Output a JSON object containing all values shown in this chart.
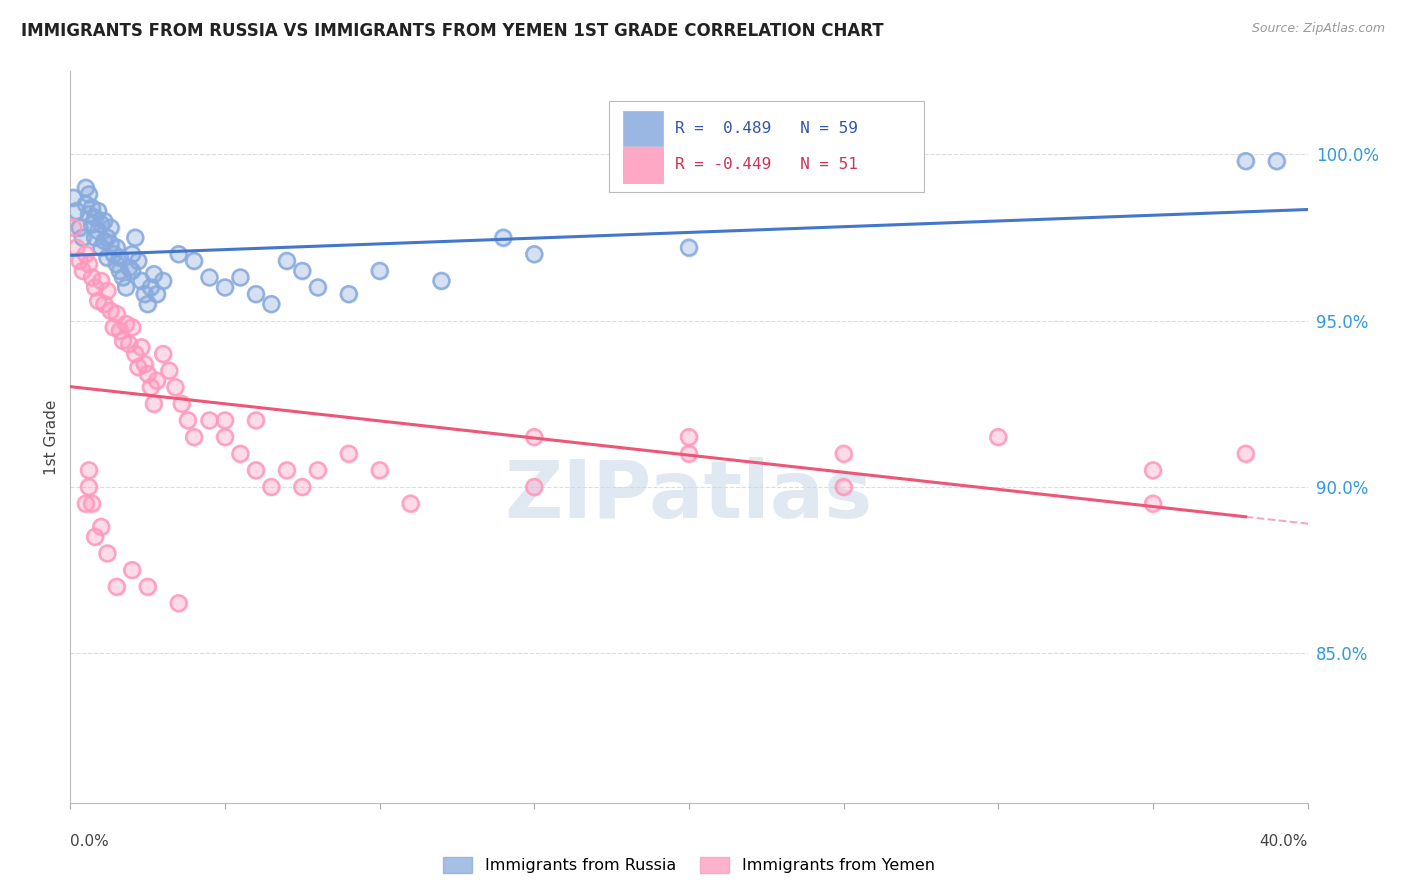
{
  "title": "IMMIGRANTS FROM RUSSIA VS IMMIGRANTS FROM YEMEN 1ST GRADE CORRELATION CHART",
  "source": "Source: ZipAtlas.com",
  "ylabel": "1st Grade",
  "ytick_labels": [
    "100.0%",
    "95.0%",
    "90.0%",
    "85.0%"
  ],
  "ytick_values": [
    1.0,
    0.95,
    0.9,
    0.85
  ],
  "xlim": [
    0.0,
    0.4
  ],
  "ylim": [
    0.805,
    1.025
  ],
  "russia_color": "#88AADD",
  "yemen_color": "#FF99BB",
  "russia_R": 0.489,
  "russia_N": 59,
  "yemen_R": -0.449,
  "yemen_N": 51,
  "russia_trend_color": "#4477CC",
  "yemen_trend_color": "#EE5577",
  "russia_scatter_x": [
    0.001,
    0.002,
    0.003,
    0.004,
    0.005,
    0.005,
    0.006,
    0.006,
    0.007,
    0.007,
    0.008,
    0.008,
    0.009,
    0.009,
    0.01,
    0.01,
    0.011,
    0.011,
    0.012,
    0.012,
    0.013,
    0.013,
    0.014,
    0.015,
    0.015,
    0.016,
    0.016,
    0.017,
    0.018,
    0.019,
    0.02,
    0.02,
    0.021,
    0.022,
    0.023,
    0.024,
    0.025,
    0.026,
    0.027,
    0.028,
    0.03,
    0.035,
    0.04,
    0.045,
    0.05,
    0.055,
    0.06,
    0.065,
    0.07,
    0.075,
    0.08,
    0.09,
    0.1,
    0.12,
    0.14,
    0.15,
    0.2,
    0.38,
    0.39
  ],
  "russia_scatter_y": [
    0.987,
    0.983,
    0.978,
    0.975,
    0.99,
    0.985,
    0.988,
    0.982,
    0.979,
    0.984,
    0.975,
    0.981,
    0.977,
    0.983,
    0.972,
    0.979,
    0.974,
    0.98,
    0.975,
    0.969,
    0.978,
    0.973,
    0.97,
    0.967,
    0.972,
    0.965,
    0.969,
    0.963,
    0.96,
    0.966,
    0.97,
    0.965,
    0.975,
    0.968,
    0.962,
    0.958,
    0.955,
    0.96,
    0.964,
    0.958,
    0.962,
    0.97,
    0.968,
    0.963,
    0.96,
    0.963,
    0.958,
    0.955,
    0.968,
    0.965,
    0.96,
    0.958,
    0.965,
    0.962,
    0.975,
    0.97,
    0.972,
    0.998,
    0.998
  ],
  "yemen_scatter_x": [
    0.001,
    0.002,
    0.003,
    0.004,
    0.005,
    0.006,
    0.007,
    0.008,
    0.009,
    0.01,
    0.011,
    0.012,
    0.013,
    0.014,
    0.015,
    0.016,
    0.017,
    0.018,
    0.019,
    0.02,
    0.021,
    0.022,
    0.023,
    0.024,
    0.025,
    0.026,
    0.027,
    0.028,
    0.03,
    0.032,
    0.034,
    0.036,
    0.038,
    0.04,
    0.045,
    0.05,
    0.055,
    0.06,
    0.065,
    0.07,
    0.075,
    0.08,
    0.09,
    0.1,
    0.11,
    0.15,
    0.2,
    0.25,
    0.3,
    0.35,
    0.38
  ],
  "yemen_scatter_y": [
    0.978,
    0.972,
    0.968,
    0.965,
    0.97,
    0.967,
    0.963,
    0.96,
    0.956,
    0.962,
    0.955,
    0.959,
    0.953,
    0.948,
    0.952,
    0.947,
    0.944,
    0.949,
    0.943,
    0.948,
    0.94,
    0.936,
    0.942,
    0.937,
    0.934,
    0.93,
    0.925,
    0.932,
    0.94,
    0.935,
    0.93,
    0.925,
    0.92,
    0.915,
    0.92,
    0.915,
    0.91,
    0.905,
    0.9,
    0.905,
    0.9,
    0.905,
    0.91,
    0.905,
    0.895,
    0.915,
    0.915,
    0.9,
    0.915,
    0.905,
    0.91
  ],
  "yemen_scatter_low_x": [
    0.005,
    0.006,
    0.006,
    0.007,
    0.008,
    0.01,
    0.012,
    0.015,
    0.02,
    0.025,
    0.035,
    0.05,
    0.06,
    0.15,
    0.2,
    0.25,
    0.35
  ],
  "yemen_scatter_low_y": [
    0.895,
    0.9,
    0.905,
    0.895,
    0.885,
    0.888,
    0.88,
    0.87,
    0.875,
    0.87,
    0.865,
    0.92,
    0.92,
    0.9,
    0.91,
    0.91,
    0.895
  ],
  "watermark_text": "ZIPatlas",
  "grid_color": "#DDDDDD",
  "background_color": "#FFFFFF",
  "legend_russia_text": "R =  0.489   N = 59",
  "legend_yemen_text": "R = -0.449   N = 51",
  "bottom_legend_russia": "Immigrants from Russia",
  "bottom_legend_yemen": "Immigrants from Yemen"
}
